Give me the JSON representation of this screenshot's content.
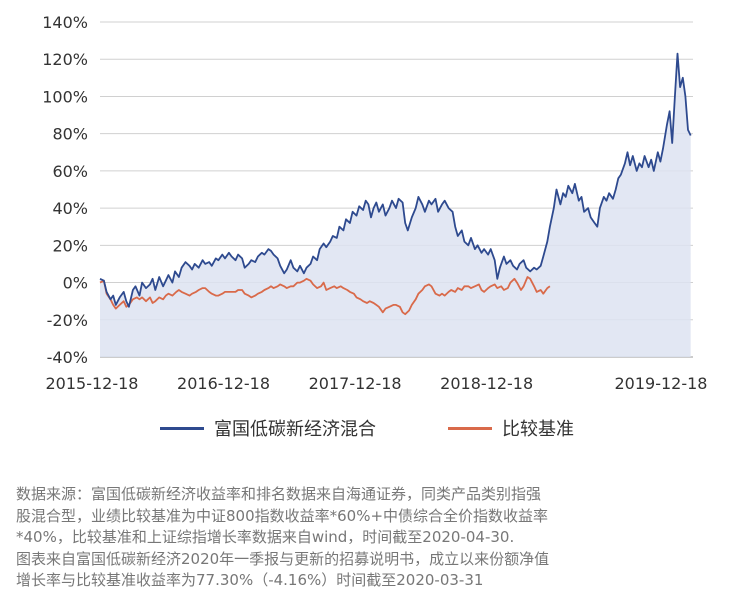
{
  "chart_data": {
    "type": "area",
    "x_tick_labels": [
      "2015-12-18",
      "2016-12-18",
      "2017-12-18",
      "2018-12-18",
      "2019-12-18"
    ],
    "y_tick_labels": [
      "140%",
      "120%",
      "100%",
      "80%",
      "60%",
      "40%",
      "20%",
      "0%",
      "-20%",
      "-40%"
    ],
    "ylim": [
      -40,
      140
    ],
    "xlim": [
      0,
      4.35
    ],
    "grid": "horizontal",
    "legend_position": "bottom",
    "series": [
      {
        "name": "富国低碳新经济混合",
        "color": "#2e4a8f",
        "fill": "#dde3f1",
        "points": [
          [
            0.0,
            2
          ],
          [
            0.03,
            1
          ],
          [
            0.05,
            -5
          ],
          [
            0.08,
            -9
          ],
          [
            0.1,
            -7
          ],
          [
            0.12,
            -12
          ],
          [
            0.15,
            -8
          ],
          [
            0.18,
            -5
          ],
          [
            0.2,
            -10
          ],
          [
            0.22,
            -13
          ],
          [
            0.25,
            -4
          ],
          [
            0.27,
            -2
          ],
          [
            0.3,
            -7
          ],
          [
            0.32,
            0
          ],
          [
            0.35,
            -3
          ],
          [
            0.38,
            -1
          ],
          [
            0.4,
            2
          ],
          [
            0.42,
            -4
          ],
          [
            0.45,
            3
          ],
          [
            0.48,
            -2
          ],
          [
            0.5,
            1
          ],
          [
            0.52,
            4
          ],
          [
            0.55,
            0
          ],
          [
            0.57,
            6
          ],
          [
            0.6,
            3
          ],
          [
            0.62,
            8
          ],
          [
            0.65,
            11
          ],
          [
            0.68,
            9
          ],
          [
            0.7,
            7
          ],
          [
            0.72,
            10
          ],
          [
            0.75,
            8
          ],
          [
            0.78,
            12
          ],
          [
            0.8,
            10
          ],
          [
            0.83,
            11
          ],
          [
            0.85,
            9
          ],
          [
            0.88,
            13
          ],
          [
            0.9,
            12
          ],
          [
            0.93,
            15
          ],
          [
            0.95,
            13
          ],
          [
            0.98,
            16
          ],
          [
            1.0,
            14
          ],
          [
            1.03,
            12
          ],
          [
            1.05,
            15
          ],
          [
            1.08,
            13
          ],
          [
            1.1,
            8
          ],
          [
            1.13,
            10
          ],
          [
            1.15,
            12
          ],
          [
            1.18,
            11
          ],
          [
            1.2,
            14
          ],
          [
            1.23,
            16
          ],
          [
            1.25,
            15
          ],
          [
            1.28,
            18
          ],
          [
            1.3,
            17
          ],
          [
            1.32,
            15
          ],
          [
            1.35,
            13
          ],
          [
            1.37,
            9
          ],
          [
            1.4,
            5
          ],
          [
            1.42,
            7
          ],
          [
            1.45,
            12
          ],
          [
            1.47,
            8
          ],
          [
            1.5,
            6
          ],
          [
            1.52,
            9
          ],
          [
            1.55,
            5
          ],
          [
            1.57,
            8
          ],
          [
            1.6,
            10
          ],
          [
            1.62,
            14
          ],
          [
            1.65,
            12
          ],
          [
            1.67,
            18
          ],
          [
            1.7,
            21
          ],
          [
            1.72,
            19
          ],
          [
            1.75,
            22
          ],
          [
            1.77,
            25
          ],
          [
            1.8,
            24
          ],
          [
            1.82,
            30
          ],
          [
            1.85,
            28
          ],
          [
            1.87,
            34
          ],
          [
            1.9,
            32
          ],
          [
            1.92,
            38
          ],
          [
            1.95,
            36
          ],
          [
            1.97,
            41
          ],
          [
            2.0,
            39
          ],
          [
            2.02,
            44
          ],
          [
            2.04,
            42
          ],
          [
            2.06,
            35
          ],
          [
            2.08,
            40
          ],
          [
            2.1,
            43
          ],
          [
            2.12,
            38
          ],
          [
            2.15,
            42
          ],
          [
            2.17,
            36
          ],
          [
            2.2,
            40
          ],
          [
            2.22,
            44
          ],
          [
            2.25,
            40
          ],
          [
            2.27,
            45
          ],
          [
            2.3,
            43
          ],
          [
            2.32,
            32
          ],
          [
            2.34,
            28
          ],
          [
            2.37,
            35
          ],
          [
            2.4,
            40
          ],
          [
            2.42,
            46
          ],
          [
            2.45,
            42
          ],
          [
            2.47,
            38
          ],
          [
            2.5,
            44
          ],
          [
            2.52,
            42
          ],
          [
            2.55,
            45
          ],
          [
            2.57,
            38
          ],
          [
            2.6,
            42
          ],
          [
            2.62,
            44
          ],
          [
            2.65,
            40
          ],
          [
            2.68,
            38
          ],
          [
            2.7,
            30
          ],
          [
            2.72,
            25
          ],
          [
            2.75,
            28
          ],
          [
            2.77,
            22
          ],
          [
            2.8,
            20
          ],
          [
            2.82,
            24
          ],
          [
            2.85,
            18
          ],
          [
            2.87,
            20
          ],
          [
            2.9,
            16
          ],
          [
            2.92,
            18
          ],
          [
            2.95,
            15
          ],
          [
            2.97,
            18
          ],
          [
            3.0,
            12
          ],
          [
            3.02,
            2
          ],
          [
            3.04,
            8
          ],
          [
            3.07,
            14
          ],
          [
            3.09,
            10
          ],
          [
            3.12,
            12
          ],
          [
            3.14,
            9
          ],
          [
            3.17,
            7
          ],
          [
            3.19,
            10
          ],
          [
            3.22,
            12
          ],
          [
            3.24,
            8
          ],
          [
            3.27,
            6
          ],
          [
            3.3,
            8
          ],
          [
            3.32,
            7
          ],
          [
            3.35,
            9
          ],
          [
            3.37,
            14
          ],
          [
            3.4,
            22
          ],
          [
            3.42,
            30
          ],
          [
            3.45,
            40
          ],
          [
            3.47,
            50
          ],
          [
            3.5,
            42
          ],
          [
            3.52,
            48
          ],
          [
            3.54,
            46
          ],
          [
            3.56,
            52
          ],
          [
            3.59,
            48
          ],
          [
            3.61,
            53
          ],
          [
            3.64,
            44
          ],
          [
            3.66,
            46
          ],
          [
            3.68,
            38
          ],
          [
            3.71,
            40
          ],
          [
            3.73,
            35
          ],
          [
            3.76,
            32
          ],
          [
            3.78,
            30
          ],
          [
            3.8,
            40
          ],
          [
            3.83,
            46
          ],
          [
            3.85,
            44
          ],
          [
            3.87,
            48
          ],
          [
            3.9,
            45
          ],
          [
            3.92,
            50
          ],
          [
            3.94,
            56
          ],
          [
            3.96,
            58
          ],
          [
            3.99,
            64
          ],
          [
            4.01,
            70
          ],
          [
            4.03,
            63
          ],
          [
            4.05,
            68
          ],
          [
            4.08,
            60
          ],
          [
            4.1,
            64
          ],
          [
            4.12,
            62
          ],
          [
            4.14,
            68
          ],
          [
            4.17,
            62
          ],
          [
            4.19,
            66
          ],
          [
            4.21,
            60
          ],
          [
            4.24,
            70
          ],
          [
            4.26,
            65
          ],
          [
            4.28,
            72
          ],
          [
            4.31,
            85
          ],
          [
            4.33,
            92
          ],
          [
            4.35,
            75
          ],
          [
            4.37,
            100
          ],
          [
            4.39,
            123
          ],
          [
            4.41,
            105
          ],
          [
            4.43,
            110
          ],
          [
            4.45,
            100
          ],
          [
            4.47,
            82
          ],
          [
            4.49,
            79
          ]
        ]
      },
      {
        "name": "比较基准",
        "color": "#d96a4a",
        "points": [
          [
            0.0,
            0
          ],
          [
            0.03,
            1
          ],
          [
            0.05,
            -6
          ],
          [
            0.08,
            -9
          ],
          [
            0.1,
            -12
          ],
          [
            0.12,
            -14
          ],
          [
            0.15,
            -12
          ],
          [
            0.18,
            -10
          ],
          [
            0.2,
            -13
          ],
          [
            0.22,
            -12
          ],
          [
            0.25,
            -9
          ],
          [
            0.28,
            -8
          ],
          [
            0.3,
            -9
          ],
          [
            0.32,
            -8
          ],
          [
            0.35,
            -10
          ],
          [
            0.38,
            -8
          ],
          [
            0.4,
            -11
          ],
          [
            0.42,
            -10
          ],
          [
            0.45,
            -8
          ],
          [
            0.48,
            -9
          ],
          [
            0.5,
            -7
          ],
          [
            0.52,
            -6
          ],
          [
            0.55,
            -7
          ],
          [
            0.58,
            -5
          ],
          [
            0.6,
            -4
          ],
          [
            0.62,
            -5
          ],
          [
            0.65,
            -6
          ],
          [
            0.68,
            -7
          ],
          [
            0.7,
            -6
          ],
          [
            0.73,
            -5
          ],
          [
            0.75,
            -4
          ],
          [
            0.78,
            -3
          ],
          [
            0.8,
            -3
          ],
          [
            0.83,
            -5
          ],
          [
            0.85,
            -6
          ],
          [
            0.88,
            -7
          ],
          [
            0.9,
            -7
          ],
          [
            0.93,
            -6
          ],
          [
            0.95,
            -5
          ],
          [
            0.98,
            -5
          ],
          [
            1.0,
            -5
          ],
          [
            1.03,
            -5
          ],
          [
            1.05,
            -4
          ],
          [
            1.08,
            -4
          ],
          [
            1.1,
            -6
          ],
          [
            1.13,
            -7
          ],
          [
            1.15,
            -8
          ],
          [
            1.18,
            -7
          ],
          [
            1.2,
            -6
          ],
          [
            1.23,
            -5
          ],
          [
            1.25,
            -4
          ],
          [
            1.28,
            -3
          ],
          [
            1.3,
            -2
          ],
          [
            1.32,
            -3
          ],
          [
            1.35,
            -2
          ],
          [
            1.37,
            -1
          ],
          [
            1.4,
            -2
          ],
          [
            1.42,
            -3
          ],
          [
            1.45,
            -2
          ],
          [
            1.47,
            -2
          ],
          [
            1.5,
            0
          ],
          [
            1.52,
            0
          ],
          [
            1.55,
            1
          ],
          [
            1.57,
            2
          ],
          [
            1.6,
            1
          ],
          [
            1.62,
            -1
          ],
          [
            1.65,
            -3
          ],
          [
            1.68,
            -2
          ],
          [
            1.7,
            0
          ],
          [
            1.72,
            -4
          ],
          [
            1.75,
            -3
          ],
          [
            1.78,
            -2
          ],
          [
            1.8,
            -3
          ],
          [
            1.83,
            -2
          ],
          [
            1.85,
            -3
          ],
          [
            1.88,
            -4
          ],
          [
            1.9,
            -5
          ],
          [
            1.93,
            -6
          ],
          [
            1.95,
            -8
          ],
          [
            1.98,
            -9
          ],
          [
            2.0,
            -10
          ],
          [
            2.03,
            -11
          ],
          [
            2.05,
            -10
          ],
          [
            2.08,
            -11
          ],
          [
            2.1,
            -12
          ],
          [
            2.12,
            -13
          ],
          [
            2.15,
            -16
          ],
          [
            2.17,
            -14
          ],
          [
            2.2,
            -13
          ],
          [
            2.23,
            -12
          ],
          [
            2.25,
            -12
          ],
          [
            2.28,
            -13
          ],
          [
            2.3,
            -16
          ],
          [
            2.32,
            -17
          ],
          [
            2.35,
            -15
          ],
          [
            2.37,
            -12
          ],
          [
            2.4,
            -9
          ],
          [
            2.42,
            -6
          ],
          [
            2.45,
            -4
          ],
          [
            2.47,
            -2
          ],
          [
            2.5,
            -1
          ],
          [
            2.52,
            -2
          ],
          [
            2.55,
            -6
          ],
          [
            2.58,
            -7
          ],
          [
            2.6,
            -6
          ],
          [
            2.62,
            -7
          ],
          [
            2.65,
            -5
          ],
          [
            2.67,
            -4
          ],
          [
            2.7,
            -5
          ],
          [
            2.72,
            -3
          ],
          [
            2.75,
            -4
          ],
          [
            2.77,
            -2
          ],
          [
            2.8,
            -2
          ],
          [
            2.82,
            -3
          ],
          [
            2.85,
            -2
          ],
          [
            2.88,
            -1
          ],
          [
            2.9,
            -4
          ],
          [
            2.92,
            -5
          ],
          [
            2.95,
            -3
          ],
          [
            2.97,
            -2
          ],
          [
            3.0,
            -1
          ],
          [
            3.02,
            -3
          ],
          [
            3.05,
            -2
          ],
          [
            3.07,
            -4
          ],
          [
            3.1,
            -3
          ],
          [
            3.12,
            0
          ],
          [
            3.15,
            2
          ],
          [
            3.17,
            0
          ],
          [
            3.2,
            -4
          ],
          [
            3.22,
            -2
          ],
          [
            3.25,
            3
          ],
          [
            3.27,
            2
          ],
          [
            3.3,
            -2
          ],
          [
            3.32,
            -5
          ],
          [
            3.35,
            -4
          ],
          [
            3.37,
            -6
          ],
          [
            3.4,
            -3
          ],
          [
            3.42,
            -2
          ]
        ]
      }
    ]
  },
  "footnote": {
    "line1": "数据来源：富国低碳新经济收益率和排名数据来自海通证券，同类产品类别指强",
    "line2": "股混合型，业绩比较基准为中证800指数收益率*60%+中债综合全价指数收益率",
    "line3": "*40%，比较基准和上证综指增长率数据来自wind，时间截至2020-04-30.",
    "line4": "图表来自富国低碳新经济2020年一季报与更新的招募说明书，成立以来份额净值",
    "line5": "增长率与比较基准收益率为77.30%（-4.16%）时间截至2020-03-31"
  }
}
